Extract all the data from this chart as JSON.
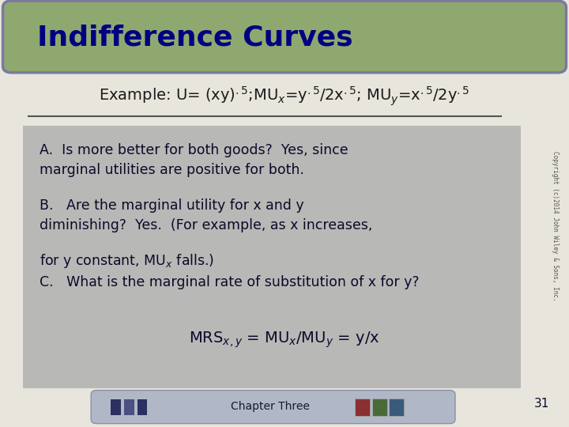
{
  "title": "Indifference Curves",
  "title_bg_color": "#8fa870",
  "title_border_color": "#7a7aa0",
  "title_text_color": "#000080",
  "slide_bg_color": "#e8e5dc",
  "content_box_color": "#b0b0b0",
  "text_A": "A.  Is more better for both goods?  Yes, since\nmarginal utilities are positive for both.",
  "text_B1": "B.   Are the marginal utility for x and y\ndiminishing?  Yes.  (For example, as x increases,",
  "text_B2": "for y constant, MU$_x$ falls.)",
  "text_C": "C.   What is the marginal rate of substitution of x for y?",
  "copyright": "Copyright (c)2014 John Wiley & Sons, Inc.",
  "page_num": "31",
  "footer_text": "Chapter Three",
  "footer_bg": "#b0b8c8",
  "text_color": "#1a1a1a",
  "dark_text": "#0a0a2a",
  "line_color": "#555555"
}
